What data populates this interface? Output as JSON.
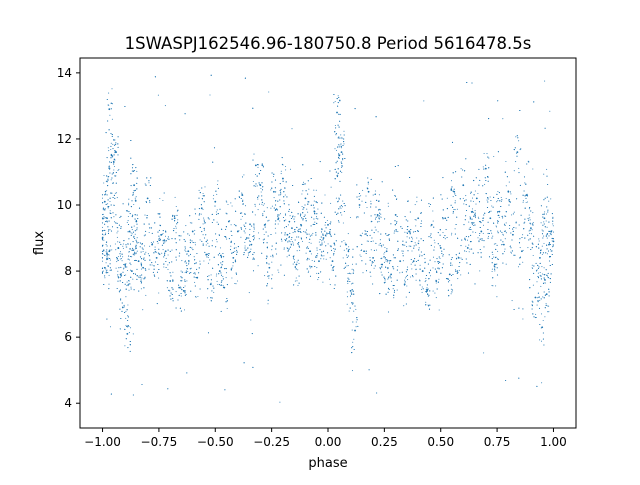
{
  "chart_data": {
    "type": "scatter",
    "title": "1SWASPJ162546.96-180750.8 Period 5616478.5s",
    "xlabel": "phase",
    "ylabel": "flux",
    "xlim": [
      -1.1,
      1.1
    ],
    "ylim": [
      3.25,
      14.45
    ],
    "x_ticks": [
      -1.0,
      -0.75,
      -0.5,
      -0.25,
      0.0,
      0.25,
      0.5,
      0.75,
      1.0
    ],
    "x_tick_labels": [
      "−1.00",
      "−0.75",
      "−0.50",
      "−0.25",
      "0.00",
      "0.25",
      "0.50",
      "0.75",
      "1.00"
    ],
    "y_ticks": [
      4,
      6,
      8,
      10,
      12,
      14
    ],
    "y_tick_labels": [
      "4",
      "6",
      "8",
      "10",
      "12",
      "14"
    ],
    "grid": false,
    "legend": "none",
    "series": [
      {
        "color": "#1f77b4",
        "marker_size": "tiny",
        "x_range": [
          -1.0,
          1.0
        ],
        "symmetric_about_phase_zero": true,
        "points": [
          [
            -1.0,
            9.0
          ],
          [
            -0.99,
            10.1
          ],
          [
            -0.99,
            8.1
          ],
          [
            -0.98,
            9.6
          ],
          [
            -0.97,
            12.9
          ],
          [
            -0.97,
            8.6
          ],
          [
            -0.96,
            11.5
          ],
          [
            -0.95,
            11.3
          ],
          [
            -0.94,
            11.6
          ],
          [
            -0.93,
            8.7
          ],
          [
            -0.92,
            7.9
          ],
          [
            -0.91,
            6.9
          ],
          [
            -0.9,
            8.2
          ],
          [
            -0.89,
            6.1
          ],
          [
            -0.88,
            9.2
          ],
          [
            -0.87,
            8.0
          ],
          [
            -0.86,
            10.6
          ],
          [
            -0.85,
            9.5
          ],
          [
            -0.84,
            8.3
          ],
          [
            -0.82,
            8.1
          ],
          [
            -0.8,
            10.2
          ],
          [
            -0.78,
            8.8
          ],
          [
            -0.76,
            8.4
          ],
          [
            -0.74,
            9.1
          ],
          [
            -0.72,
            8.6
          ],
          [
            -0.7,
            7.7
          ],
          [
            -0.68,
            9.6
          ],
          [
            -0.66,
            7.5
          ],
          [
            -0.64,
            7.4
          ],
          [
            -0.62,
            8.6
          ],
          [
            -0.6,
            9.2
          ],
          [
            -0.58,
            7.8
          ],
          [
            -0.56,
            9.9
          ],
          [
            -0.54,
            8.5
          ],
          [
            -0.52,
            7.6
          ],
          [
            -0.5,
            10.1
          ],
          [
            -0.48,
            8.0
          ],
          [
            -0.46,
            7.5
          ],
          [
            -0.44,
            9.5
          ],
          [
            -0.42,
            8.4
          ],
          [
            -0.4,
            9.2
          ],
          [
            -0.38,
            10.3
          ],
          [
            -0.36,
            9.0
          ],
          [
            -0.34,
            8.8
          ],
          [
            -0.32,
            11.2
          ],
          [
            -0.3,
            10.6
          ],
          [
            -0.28,
            9.4
          ],
          [
            -0.26,
            8.1
          ],
          [
            -0.24,
            10.4
          ],
          [
            -0.22,
            9.6
          ],
          [
            -0.2,
            10.8
          ],
          [
            -0.18,
            9.1
          ],
          [
            -0.16,
            9.3
          ],
          [
            -0.14,
            8.2
          ],
          [
            -0.12,
            9.4
          ],
          [
            -0.1,
            10.2
          ],
          [
            -0.08,
            8.6
          ],
          [
            -0.06,
            9.8
          ],
          [
            -0.04,
            8.3
          ],
          [
            -0.02,
            9.0
          ],
          [
            0.0,
            9.4
          ],
          [
            0.02,
            8.3
          ],
          [
            0.04,
            12.8
          ],
          [
            0.05,
            11.5
          ],
          [
            0.06,
            11.6
          ],
          [
            0.08,
            8.8
          ],
          [
            0.1,
            7.4
          ],
          [
            0.12,
            6.2
          ],
          [
            0.14,
            10.0
          ],
          [
            0.16,
            8.6
          ],
          [
            0.18,
            10.4
          ],
          [
            0.2,
            8.4
          ],
          [
            0.22,
            9.7
          ],
          [
            0.24,
            8.2
          ],
          [
            0.26,
            8.6
          ],
          [
            0.28,
            7.9
          ],
          [
            0.3,
            9.7
          ],
          [
            0.32,
            8.3
          ],
          [
            0.34,
            7.6
          ],
          [
            0.36,
            9.2
          ],
          [
            0.38,
            8.3
          ],
          [
            0.4,
            9.6
          ],
          [
            0.42,
            8.0
          ],
          [
            0.44,
            7.4
          ],
          [
            0.46,
            9.4
          ],
          [
            0.48,
            7.7
          ],
          [
            0.5,
            8.7
          ],
          [
            0.52,
            9.6
          ],
          [
            0.54,
            7.9
          ],
          [
            0.56,
            10.4
          ],
          [
            0.58,
            8.4
          ],
          [
            0.6,
            10.6
          ],
          [
            0.62,
            8.7
          ],
          [
            0.64,
            9.8
          ],
          [
            0.66,
            10.2
          ],
          [
            0.68,
            9.2
          ],
          [
            0.7,
            11.1
          ],
          [
            0.72,
            9.6
          ],
          [
            0.74,
            8.2
          ],
          [
            0.76,
            9.8
          ],
          [
            0.78,
            8.8
          ],
          [
            0.8,
            10.4
          ],
          [
            0.82,
            9.1
          ],
          [
            0.84,
            11.6
          ],
          [
            0.86,
            8.6
          ],
          [
            0.88,
            10.3
          ],
          [
            0.9,
            9.3
          ],
          [
            0.92,
            7.2
          ],
          [
            0.94,
            8.4
          ],
          [
            0.95,
            6.3
          ],
          [
            0.96,
            9.6
          ],
          [
            0.97,
            7.3
          ],
          [
            0.98,
            8.8
          ],
          [
            0.99,
            9.2
          ],
          [
            1.0,
            8.9
          ]
        ]
      }
    ]
  }
}
